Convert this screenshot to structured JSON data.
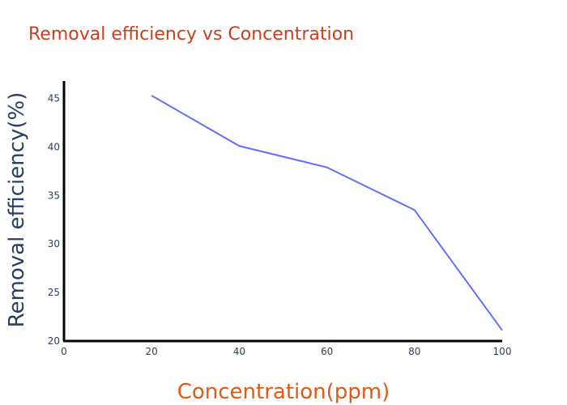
{
  "chart_data": {
    "type": "line",
    "title": "Removal efficiency vs Concentration",
    "xlabel": "Concentration(ppm)",
    "ylabel": "Removal efficiency(%)",
    "x": [
      20,
      40,
      60,
      80,
      100
    ],
    "series": [
      {
        "values": [
          45.3,
          40.1,
          37.9,
          33.5,
          21.1
        ]
      }
    ],
    "xlim": [
      0,
      100
    ],
    "ylim": [
      20,
      46.8
    ],
    "xticks": [
      "0",
      "20",
      "40",
      "60",
      "80",
      "100"
    ],
    "yticks": [
      "20",
      "25",
      "30",
      "35",
      "40",
      "45"
    ],
    "grid": false,
    "legend": "none",
    "colors": {
      "line": "#636efa",
      "title": "#cc3d1f",
      "xlabel": "#e05a14",
      "ylabel": "#2a3f5f",
      "axis": "#000000",
      "ticks": "#2a3f5f"
    }
  }
}
